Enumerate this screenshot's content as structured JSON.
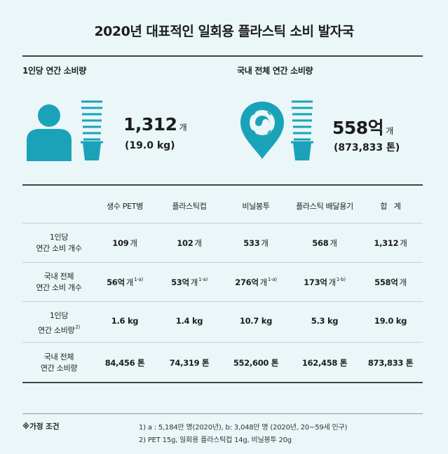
{
  "title": "2020년 대표적인 일회용 플라스틱 소비 발자국",
  "per_capita": {
    "label": "1인당 연간 소비량",
    "count": "1,312",
    "count_unit": "개",
    "weight": "(19.0 kg)"
  },
  "national": {
    "label": "국내 전체 연간 소비량",
    "count": "558억",
    "count_unit": "개",
    "weight": "(873,833 톤)"
  },
  "table": {
    "columns": [
      "생수 PET병",
      "플라스틱컵",
      "비닐봉투",
      "플라스틱 배달용기",
      "합   계"
    ],
    "rows": [
      {
        "label1": "1인당",
        "label2": "연간 소비 개수",
        "label_sup": "",
        "cells": [
          {
            "v": "109",
            "u": "개",
            "s": ""
          },
          {
            "v": "102",
            "u": "개",
            "s": ""
          },
          {
            "v": "533",
            "u": "개",
            "s": ""
          },
          {
            "v": "568",
            "u": "개",
            "s": ""
          },
          {
            "v": "1,312",
            "u": "개",
            "s": ""
          }
        ]
      },
      {
        "label1": "국내 전체",
        "label2": "연간 소비 개수",
        "label_sup": "",
        "cells": [
          {
            "v": "56억",
            "u": "개",
            "s": "1-a)"
          },
          {
            "v": "53억",
            "u": "개",
            "s": "1-a)"
          },
          {
            "v": "276억",
            "u": "개",
            "s": "1-a)"
          },
          {
            "v": "173억",
            "u": "개",
            "s": "1-b)"
          },
          {
            "v": "558억",
            "u": "개",
            "s": ""
          }
        ]
      },
      {
        "label1": "1인당",
        "label2": "연간 소비량",
        "label_sup": "2)",
        "cells": [
          {
            "v": "1.6 kg",
            "u": "",
            "s": ""
          },
          {
            "v": "1.4 kg",
            "u": "",
            "s": ""
          },
          {
            "v": "10.7 kg",
            "u": "",
            "s": ""
          },
          {
            "v": "5.3 kg",
            "u": "",
            "s": ""
          },
          {
            "v": "19.0 kg",
            "u": "",
            "s": ""
          }
        ]
      },
      {
        "label1": "국내 전체",
        "label2": "연간 소비량",
        "label_sup": "",
        "cells": [
          {
            "v": "84,456 톤",
            "u": "",
            "s": ""
          },
          {
            "v": "74,319 톤",
            "u": "",
            "s": ""
          },
          {
            "v": "552,600 톤",
            "u": "",
            "s": ""
          },
          {
            "v": "162,458 톤",
            "u": "",
            "s": ""
          },
          {
            "v": "873,833 톤",
            "u": "",
            "s": ""
          }
        ]
      }
    ]
  },
  "notes": {
    "label": "※가정 조건",
    "line1": "1) a : 5,184만 명(2020년), b: 3,048만 명 (2020년, 20~59세 인구)",
    "line2": "2) PET 15g, 일회용 플라스틱컵 14g, 비닐봉투 20g"
  },
  "colors": {
    "accent": "#1aa3b8",
    "background": "#eaf6f8"
  },
  "icons": [
    "person-icon",
    "cup-stack-icon",
    "korea-location-pin-icon"
  ]
}
